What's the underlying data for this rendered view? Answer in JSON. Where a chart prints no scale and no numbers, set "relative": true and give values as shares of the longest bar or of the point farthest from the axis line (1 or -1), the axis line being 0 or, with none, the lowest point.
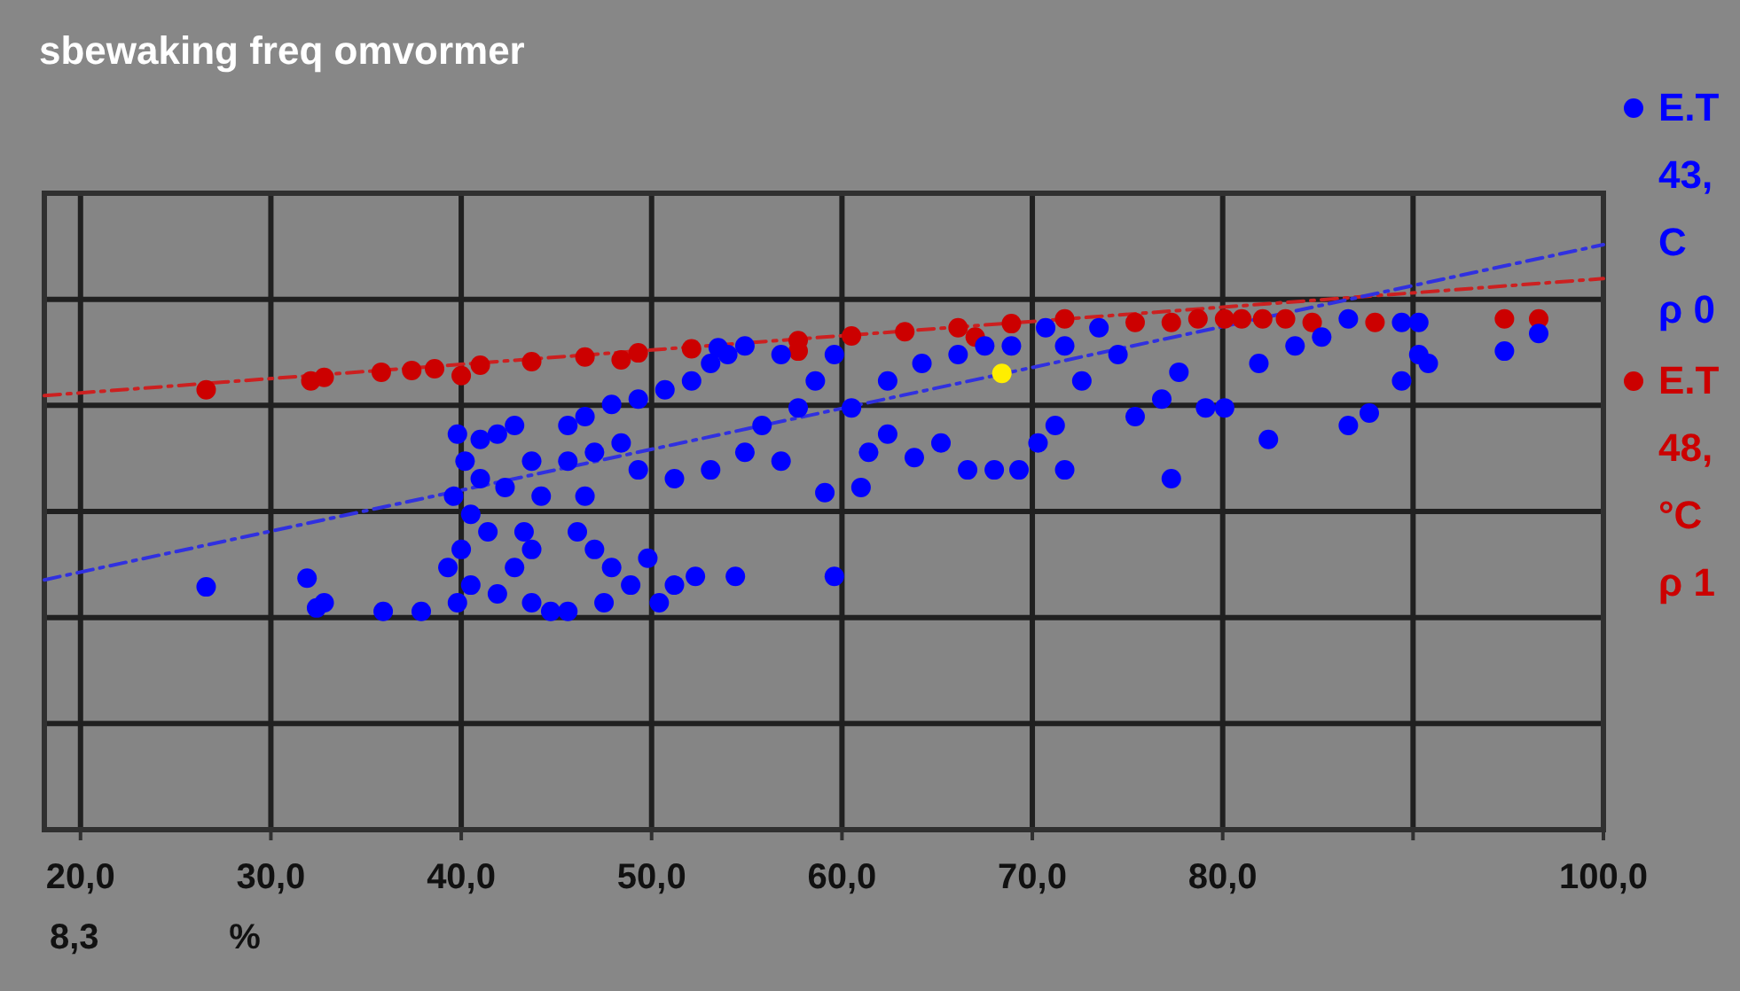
{
  "chart_data": {
    "type": "scatter",
    "title": "sbewaking freq omvormer",
    "xlabel": "%",
    "annotations": [
      "8,3"
    ],
    "relative": true,
    "grid": true,
    "legend": "right",
    "marker": "circle",
    "line_style": "dashed",
    "xlim": [
      18.1,
      100
    ],
    "xticks": [
      {
        "value": 20,
        "label": "20,0"
      },
      {
        "value": 30,
        "label": "30,0"
      },
      {
        "value": 40,
        "label": "40,0"
      },
      {
        "value": 50,
        "label": "50,0"
      },
      {
        "value": 60,
        "label": "60,0"
      },
      {
        "value": 70,
        "label": "70,0"
      },
      {
        "value": 80,
        "label": "80,0"
      },
      {
        "value": 90,
        "label": null
      },
      {
        "value": 100,
        "label": "100,0"
      }
    ],
    "series": [
      {
        "type": "line",
        "marker": "none",
        "color": "#cc2020",
        "x": [
          18.1,
          100
        ],
        "values": [
          0.742,
          0.942
        ]
      },
      {
        "type": "line",
        "marker": "none",
        "color": "#3030e0",
        "x": [
          18.1,
          100
        ],
        "values": [
          0.427,
          1.0
        ]
      },
      {
        "name": "E.T\n48,\n°C\nρ 1",
        "color": "#cc0000",
        "x": [
          26.6,
          32.1,
          32.8,
          35.8,
          37.4,
          38.6,
          41.0,
          43.7,
          46.5,
          49.3,
          52.1,
          57.7,
          60.5,
          63.3,
          66.1,
          68.9,
          71.7,
          40.0,
          48.4,
          57.7,
          67.0,
          75.4,
          77.3,
          78.7,
          80.1,
          81.0,
          82.1,
          83.3,
          84.7,
          88.0,
          94.8,
          96.6
        ],
        "values": [
          0.752,
          0.767,
          0.773,
          0.782,
          0.785,
          0.788,
          0.794,
          0.8,
          0.808,
          0.815,
          0.822,
          0.836,
          0.844,
          0.851,
          0.858,
          0.865,
          0.873,
          0.776,
          0.803,
          0.818,
          0.842,
          0.867,
          0.867,
          0.873,
          0.873,
          0.873,
          0.873,
          0.873,
          0.867,
          0.867,
          0.873,
          0.873
        ]
      },
      {
        "name": "E.T\n43,\nC\nρ 0",
        "color": "#0000ff",
        "x": [
          26.6,
          31.9,
          32.8,
          32.4,
          35.9,
          37.9,
          39.8,
          40.2,
          41.0,
          41.9,
          42.8,
          39.6,
          40.5,
          41.4,
          40.0,
          39.3,
          40.5,
          41.9,
          42.8,
          43.7,
          44.2,
          43.7,
          43.3,
          42.3,
          41.0,
          39.8,
          43.7,
          44.7,
          45.6,
          45.6,
          46.5,
          47.9,
          49.3,
          50.7,
          52.1,
          53.1,
          54.0,
          45.6,
          47.0,
          48.4,
          49.3,
          46.5,
          46.1,
          47.0,
          47.9,
          47.5,
          48.9,
          49.8,
          50.4,
          51.2,
          52.3,
          54.4,
          51.2,
          53.1,
          54.9,
          56.8,
          55.8,
          57.7,
          58.6,
          59.6,
          56.8,
          54.9,
          53.5,
          59.1,
          59.6,
          61.0,
          61.4,
          62.4,
          63.8,
          65.2,
          66.6,
          68.0,
          69.3,
          60.5,
          62.4,
          64.2,
          66.1,
          67.5,
          68.9,
          70.7,
          71.7,
          73.5,
          74.5,
          72.6,
          71.2,
          71.7,
          70.3,
          75.4,
          76.8,
          77.3,
          77.7,
          79.1,
          80.1,
          81.9,
          82.4,
          83.8,
          85.2,
          86.6,
          86.6,
          87.7,
          89.4,
          90.3,
          89.4,
          90.3,
          90.8,
          94.8,
          96.6
        ],
        "values": [
          0.415,
          0.43,
          0.388,
          0.379,
          0.373,
          0.373,
          0.676,
          0.63,
          0.667,
          0.676,
          0.691,
          0.57,
          0.539,
          0.509,
          0.479,
          0.448,
          0.418,
          0.403,
          0.448,
          0.479,
          0.57,
          0.63,
          0.509,
          0.585,
          0.6,
          0.388,
          0.388,
          0.373,
          0.373,
          0.691,
          0.706,
          0.727,
          0.736,
          0.752,
          0.767,
          0.797,
          0.812,
          0.63,
          0.645,
          0.661,
          0.615,
          0.57,
          0.509,
          0.479,
          0.448,
          0.388,
          0.418,
          0.464,
          0.388,
          0.418,
          0.433,
          0.433,
          0.6,
          0.615,
          0.645,
          0.63,
          0.691,
          0.721,
          0.767,
          0.812,
          0.812,
          0.827,
          0.824,
          0.576,
          0.433,
          0.585,
          0.645,
          0.676,
          0.636,
          0.661,
          0.615,
          0.615,
          0.615,
          0.721,
          0.767,
          0.797,
          0.812,
          0.827,
          0.827,
          0.858,
          0.827,
          0.858,
          0.812,
          0.767,
          0.691,
          0.615,
          0.661,
          0.706,
          0.736,
          0.6,
          0.782,
          0.721,
          0.721,
          0.797,
          0.667,
          0.827,
          0.842,
          0.873,
          0.691,
          0.712,
          0.767,
          0.812,
          0.867,
          0.867,
          0.797,
          0.818,
          0.848
        ]
      },
      {
        "color": "#ffee00",
        "x": [
          68.4
        ],
        "values": [
          0.78
        ]
      }
    ]
  }
}
